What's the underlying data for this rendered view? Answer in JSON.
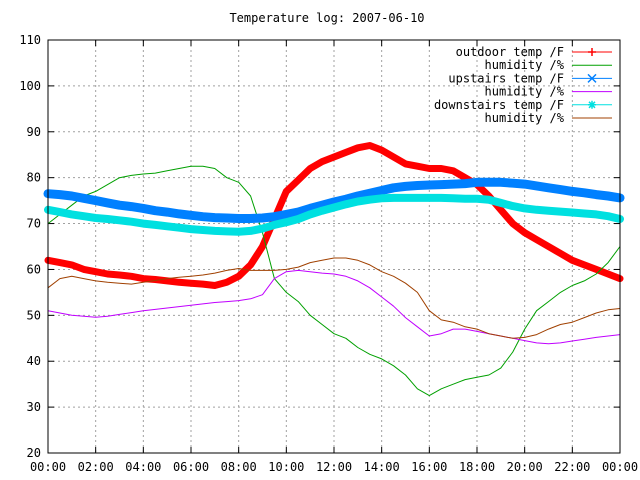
{
  "chart_data": {
    "type": "line",
    "title": "Temperature log: 2007-06-10",
    "xlabel": "",
    "ylabel": "",
    "x_ticks": [
      "00:00",
      "02:00",
      "04:00",
      "06:00",
      "08:00",
      "10:00",
      "12:00",
      "14:00",
      "16:00",
      "18:00",
      "20:00",
      "22:00",
      "00:00"
    ],
    "y_ticks": [
      20,
      30,
      40,
      50,
      60,
      70,
      80,
      90,
      100,
      110
    ],
    "xlim": [
      0,
      24
    ],
    "ylim": [
      20,
      110
    ],
    "grid": true,
    "legend_position": "top-right",
    "x": [
      0,
      0.5,
      1,
      1.5,
      2,
      2.5,
      3,
      3.5,
      4,
      4.5,
      5,
      5.5,
      6,
      6.5,
      7,
      7.5,
      8,
      8.5,
      9,
      9.5,
      10,
      10.5,
      11,
      11.5,
      12,
      12.5,
      13,
      13.5,
      14,
      14.5,
      15,
      15.5,
      16,
      16.5,
      17,
      17.5,
      18,
      18.5,
      19,
      19.5,
      20,
      20.5,
      21,
      21.5,
      22,
      22.5,
      23,
      23.5,
      24
    ],
    "series": [
      {
        "name": "outdoor temp /F",
        "color": "#ff0000",
        "marker": "plus",
        "values": [
          62,
          61.5,
          61,
          60,
          59.5,
          59,
          58.8,
          58.5,
          58,
          57.8,
          57.5,
          57.2,
          57,
          56.8,
          56.5,
          57.2,
          58.5,
          61,
          65,
          71,
          77,
          79.5,
          82,
          83.5,
          84.5,
          85.5,
          86.5,
          87,
          86,
          84.5,
          83,
          82.5,
          82,
          82,
          81.5,
          80,
          78.5,
          76,
          73,
          70,
          68,
          66.5,
          65,
          63.5,
          62,
          61,
          60,
          59,
          58
        ]
      },
      {
        "name": "humidity /%",
        "color": "#00a000",
        "marker": "none",
        "values": [
          70,
          72,
          74,
          76,
          77,
          78.5,
          80,
          80.5,
          80.8,
          81,
          81.5,
          82,
          82.5,
          82.5,
          82,
          80,
          79,
          76,
          68,
          58,
          55,
          53,
          50,
          48,
          46,
          45,
          43,
          41.5,
          40.5,
          39,
          37,
          34,
          32.5,
          34,
          35,
          36,
          36.5,
          37,
          38.5,
          42,
          47,
          51,
          53,
          55,
          56.5,
          57.5,
          59,
          61.5,
          65
        ]
      },
      {
        "name": "upstairs temp /F",
        "color": "#0080ff",
        "marker": "x",
        "values": [
          76.5,
          76.3,
          76,
          75.5,
          75,
          74.5,
          74,
          73.7,
          73.3,
          72.8,
          72.5,
          72.1,
          71.8,
          71.5,
          71.3,
          71.2,
          71.1,
          71.1,
          71.2,
          71.5,
          72,
          72.5,
          73.3,
          74,
          74.7,
          75.3,
          76,
          76.6,
          77.2,
          77.8,
          78.1,
          78.3,
          78.4,
          78.5,
          78.6,
          78.7,
          79,
          79,
          79,
          78.8,
          78.6,
          78.2,
          77.8,
          77.4,
          77,
          76.7,
          76.3,
          76,
          75.6
        ]
      },
      {
        "name": "humidity /%",
        "color": "#c000ff",
        "marker": "none",
        "values": [
          51,
          50.5,
          50,
          49.8,
          49.6,
          49.8,
          50.2,
          50.6,
          51,
          51.3,
          51.6,
          51.9,
          52.2,
          52.5,
          52.8,
          53,
          53.2,
          53.6,
          54.5,
          58,
          59.5,
          59.8,
          59.5,
          59.2,
          59,
          58.5,
          57.5,
          56,
          54,
          52,
          49.5,
          47.5,
          45.5,
          46,
          47,
          47,
          46.5,
          46,
          45.5,
          45,
          44.5,
          44,
          43.8,
          44,
          44.4,
          44.8,
          45.2,
          45.5,
          45.8
        ]
      },
      {
        "name": "downstairs temp /F",
        "color": "#00e0e0",
        "marker": "star",
        "values": [
          73,
          72.5,
          72,
          71.6,
          71.2,
          71,
          70.7,
          70.4,
          70,
          69.7,
          69.4,
          69.1,
          68.8,
          68.6,
          68.4,
          68.3,
          68.2,
          68.4,
          68.9,
          69.7,
          70.3,
          71,
          72,
          72.8,
          73.5,
          74.2,
          74.8,
          75.2,
          75.5,
          75.6,
          75.6,
          75.6,
          75.6,
          75.6,
          75.5,
          75.4,
          75.4,
          75.2,
          74.5,
          73.8,
          73.3,
          73,
          72.8,
          72.6,
          72.4,
          72.2,
          72,
          71.6,
          71
        ]
      },
      {
        "name": "humidity /%",
        "color": "#a04000",
        "marker": "none",
        "values": [
          56,
          58,
          58.5,
          58,
          57.5,
          57.2,
          57,
          56.8,
          57.2,
          57.6,
          58,
          58.3,
          58.5,
          58.8,
          59.2,
          59.8,
          60.2,
          59.8,
          59.8,
          59.8,
          60,
          60.5,
          61.5,
          62,
          62.5,
          62.5,
          62,
          61,
          59.5,
          58.5,
          57,
          55,
          51,
          49,
          48.5,
          47.5,
          47,
          46,
          45.5,
          45,
          45.2,
          45.8,
          47,
          48,
          48.5,
          49.5,
          50.5,
          51.2,
          51.5
        ]
      }
    ]
  }
}
